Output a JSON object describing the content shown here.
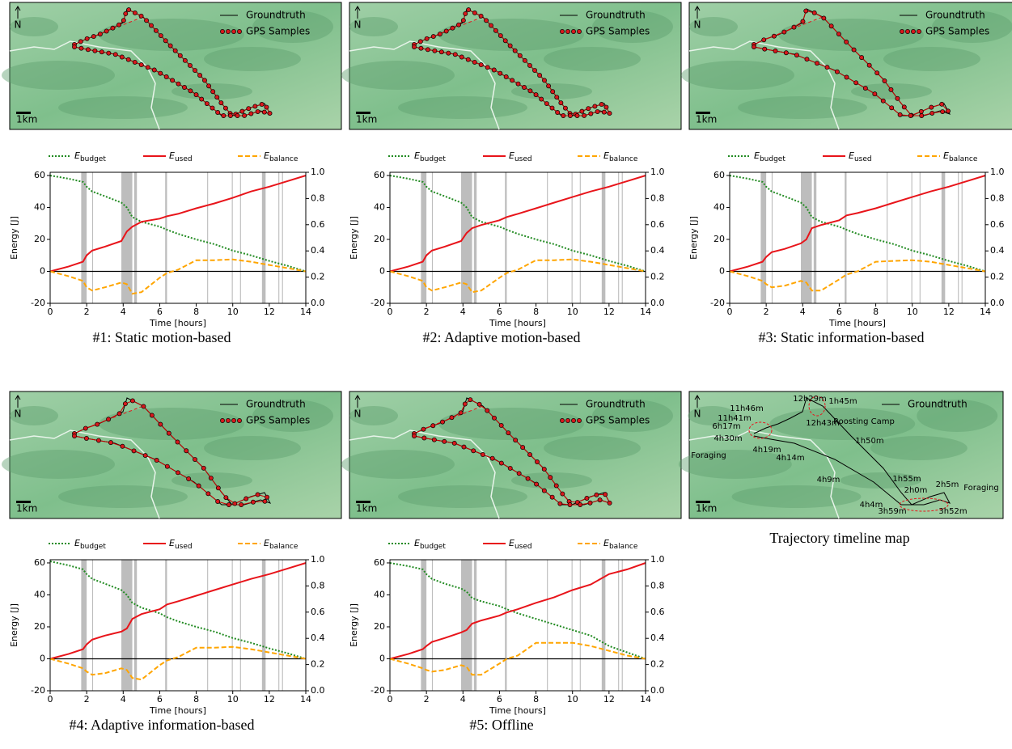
{
  "chart_data": [
    {
      "type": "line",
      "caption": "#1: Static motion-based",
      "xlabel": "Time [hours]",
      "ylabel": "Energy [J]",
      "xlim": [
        0,
        14
      ],
      "ylim": [
        -20,
        62
      ],
      "y2lim": [
        0,
        1
      ],
      "xticks": [
        0,
        2,
        4,
        6,
        8,
        10,
        12,
        14
      ],
      "yticks": [
        -20,
        0,
        20,
        40,
        60
      ],
      "y2ticks": [
        0.0,
        0.2,
        0.4,
        0.6,
        0.8,
        1.0
      ],
      "x": [
        0,
        1,
        1.8,
        2,
        2.3,
        3,
        3.9,
        4.2,
        4.5,
        5,
        6,
        6.4,
        7,
        8,
        9,
        10,
        11,
        12,
        13,
        14
      ],
      "spans": [
        [
          1.7,
          2.0
        ],
        [
          2.3,
          2.35
        ],
        [
          3.9,
          4.5
        ],
        [
          4.6,
          4.75
        ],
        [
          6.3,
          6.4
        ],
        [
          8.6,
          8.65
        ],
        [
          9.95,
          10.0
        ],
        [
          10.4,
          10.45
        ],
        [
          11.6,
          11.8
        ],
        [
          12.5,
          12.55
        ],
        [
          12.7,
          12.75
        ]
      ],
      "series": [
        {
          "name": "E_budget",
          "color": "#228b22",
          "values": [
            60,
            58,
            56,
            53,
            50,
            47,
            43,
            40,
            34,
            31,
            28,
            26,
            23.5,
            20,
            17,
            13,
            10,
            6.5,
            3.5,
            0
          ]
        },
        {
          "name": "E_used",
          "color": "#e8141a",
          "values": [
            0,
            3,
            6,
            10,
            13,
            15.5,
            19,
            25,
            28,
            31,
            33,
            34.5,
            36,
            39.5,
            42.5,
            46,
            50,
            53,
            56.5,
            60
          ]
        },
        {
          "name": "E_balance",
          "color": "#ffa500",
          "values": [
            0,
            -3,
            -6,
            -10,
            -12,
            -10,
            -7,
            -8,
            -14,
            -13,
            -4,
            -1,
            1,
            7,
            7,
            7.5,
            6,
            4,
            2,
            0
          ]
        }
      ]
    },
    {
      "type": "line",
      "caption": "#2: Adaptive motion-based",
      "xlabel": "Time [hours]",
      "ylabel": "Energy [J]",
      "xlim": [
        0,
        14
      ],
      "ylim": [
        -20,
        62
      ],
      "y2lim": [
        0,
        1
      ],
      "xticks": [
        0,
        2,
        4,
        6,
        8,
        10,
        12,
        14
      ],
      "yticks": [
        -20,
        0,
        20,
        40,
        60
      ],
      "y2ticks": [
        0.0,
        0.2,
        0.4,
        0.6,
        0.8,
        1.0
      ],
      "x": [
        0,
        1,
        1.8,
        2,
        2.3,
        3,
        3.9,
        4.2,
        4.5,
        5,
        6,
        6.4,
        7,
        8,
        9,
        10,
        11,
        12,
        13,
        14
      ],
      "spans": [
        [
          1.7,
          2.0
        ],
        [
          2.3,
          2.35
        ],
        [
          3.9,
          4.5
        ],
        [
          4.6,
          4.75
        ],
        [
          6.3,
          6.4
        ],
        [
          8.6,
          8.65
        ],
        [
          9.95,
          10.0
        ],
        [
          10.4,
          10.45
        ],
        [
          11.6,
          11.8
        ],
        [
          12.5,
          12.55
        ],
        [
          12.7,
          12.75
        ]
      ],
      "series": [
        {
          "name": "E_budget",
          "color": "#228b22",
          "values": [
            60,
            58,
            56,
            53,
            50,
            47,
            43,
            40,
            34,
            31,
            28,
            26,
            23.5,
            20,
            17,
            13,
            10,
            6.5,
            3.5,
            0
          ]
        },
        {
          "name": "E_used",
          "color": "#e8141a",
          "values": [
            0,
            3,
            6,
            10,
            13,
            15.5,
            19,
            24,
            27,
            29,
            32,
            34,
            36,
            39.5,
            43,
            46.5,
            50,
            53,
            56.5,
            60
          ]
        },
        {
          "name": "E_balance",
          "color": "#ffa500",
          "values": [
            0,
            -3,
            -6,
            -10,
            -12,
            -10,
            -7,
            -8,
            -13,
            -12,
            -4,
            -1,
            1,
            7,
            7,
            7.5,
            6,
            4,
            2,
            0
          ]
        }
      ]
    },
    {
      "type": "line",
      "caption": "#3: Static information-based",
      "xlabel": "Time [hours]",
      "ylabel": "Energy [J]",
      "xlim": [
        0,
        14
      ],
      "ylim": [
        -20,
        62
      ],
      "y2lim": [
        0,
        1
      ],
      "xticks": [
        0,
        2,
        4,
        6,
        8,
        10,
        12,
        14
      ],
      "yticks": [
        -20,
        0,
        20,
        40,
        60
      ],
      "y2ticks": [
        0.0,
        0.2,
        0.4,
        0.6,
        0.8,
        1.0
      ],
      "x": [
        0,
        1,
        1.8,
        2,
        2.3,
        3,
        3.9,
        4.2,
        4.5,
        5,
        6,
        6.4,
        7,
        8,
        9,
        10,
        11,
        12,
        13,
        14
      ],
      "spans": [
        [
          1.7,
          2.0
        ],
        [
          2.3,
          2.35
        ],
        [
          3.9,
          4.5
        ],
        [
          4.6,
          4.75
        ],
        [
          6.3,
          6.4
        ],
        [
          8.6,
          8.65
        ],
        [
          9.95,
          10.0
        ],
        [
          10.4,
          10.45
        ],
        [
          11.6,
          11.8
        ],
        [
          12.5,
          12.55
        ],
        [
          12.7,
          12.75
        ]
      ],
      "series": [
        {
          "name": "E_budget",
          "color": "#228b22",
          "values": [
            60,
            58,
            56,
            53,
            50,
            47,
            43,
            40,
            34,
            31,
            28,
            26,
            23.5,
            20,
            17,
            13,
            10,
            6.5,
            3.5,
            0
          ]
        },
        {
          "name": "E_used",
          "color": "#e8141a",
          "values": [
            0,
            3,
            6,
            9,
            12,
            14,
            17.5,
            20,
            27,
            29,
            32,
            35,
            36.5,
            39.5,
            43,
            46.5,
            50,
            53,
            56.5,
            60
          ]
        },
        {
          "name": "E_balance",
          "color": "#ffa500",
          "values": [
            0,
            -3,
            -6,
            -8,
            -10,
            -9,
            -6,
            -7,
            -12,
            -12,
            -5,
            -2,
            0,
            6,
            6.5,
            7,
            6,
            4,
            2,
            0
          ]
        }
      ]
    },
    {
      "type": "line",
      "caption": "#4: Adaptive information-based",
      "xlabel": "Time [hours]",
      "ylabel": "Energy [J]",
      "xlim": [
        0,
        14
      ],
      "ylim": [
        -20,
        62
      ],
      "y2lim": [
        0,
        1
      ],
      "xticks": [
        0,
        2,
        4,
        6,
        8,
        10,
        12,
        14
      ],
      "yticks": [
        -20,
        0,
        20,
        40,
        60
      ],
      "y2ticks": [
        0.0,
        0.2,
        0.4,
        0.6,
        0.8,
        1.0
      ],
      "x": [
        0,
        1,
        1.8,
        2,
        2.3,
        3,
        3.9,
        4.2,
        4.5,
        5,
        6,
        6.4,
        7,
        8,
        9,
        10,
        11,
        12,
        13,
        14
      ],
      "spans": [
        [
          1.7,
          2.0
        ],
        [
          2.3,
          2.35
        ],
        [
          3.9,
          4.5
        ],
        [
          4.6,
          4.75
        ],
        [
          6.3,
          6.4
        ],
        [
          8.6,
          8.65
        ],
        [
          9.95,
          10.0
        ],
        [
          10.4,
          10.45
        ],
        [
          11.6,
          11.8
        ],
        [
          12.5,
          12.55
        ],
        [
          12.7,
          12.75
        ]
      ],
      "series": [
        {
          "name": "E_budget",
          "color": "#228b22",
          "values": [
            61,
            58.5,
            56,
            53,
            50,
            47,
            43,
            40,
            35,
            32,
            28.5,
            26,
            23.5,
            20,
            17,
            13,
            10,
            6.5,
            3.5,
            0
          ]
        },
        {
          "name": "E_used",
          "color": "#e8141a",
          "values": [
            0,
            3,
            6,
            9,
            12,
            14.5,
            17,
            19,
            25,
            28,
            31,
            34,
            36,
            39.5,
            43,
            46.5,
            50,
            53,
            56.5,
            60
          ]
        },
        {
          "name": "E_balance",
          "color": "#ffa500",
          "values": [
            0,
            -3,
            -6,
            -8,
            -10,
            -9,
            -6,
            -7,
            -12,
            -13,
            -4,
            -1,
            1,
            7,
            7,
            7.5,
            6,
            4,
            2,
            0
          ]
        }
      ]
    },
    {
      "type": "line",
      "caption": "#5: Offline",
      "xlabel": "Time [hours]",
      "ylabel": "Energy [J]",
      "xlim": [
        0,
        14
      ],
      "ylim": [
        -20,
        62
      ],
      "y2lim": [
        0,
        1
      ],
      "xticks": [
        0,
        2,
        4,
        6,
        8,
        10,
        12,
        14
      ],
      "yticks": [
        -20,
        0,
        20,
        40,
        60
      ],
      "y2ticks": [
        0.0,
        0.2,
        0.4,
        0.6,
        0.8,
        1.0
      ],
      "x": [
        0,
        1,
        1.8,
        2,
        2.3,
        3,
        3.9,
        4.2,
        4.5,
        5,
        6,
        6.4,
        7,
        8,
        9,
        10,
        11,
        12,
        13,
        14
      ],
      "spans": [
        [
          1.7,
          2.0
        ],
        [
          2.3,
          2.35
        ],
        [
          3.9,
          4.5
        ],
        [
          4.6,
          4.75
        ],
        [
          6.3,
          6.4
        ],
        [
          8.6,
          8.65
        ],
        [
          9.95,
          10.0
        ],
        [
          10.4,
          10.45
        ],
        [
          11.6,
          11.8
        ],
        [
          12.5,
          12.55
        ],
        [
          12.7,
          12.75
        ]
      ],
      "series": [
        {
          "name": "E_budget",
          "color": "#228b22",
          "values": [
            60,
            58,
            56,
            53,
            50,
            47,
            44,
            42,
            38,
            36,
            33,
            31,
            28.5,
            25,
            21.5,
            18,
            14.5,
            8,
            4,
            0
          ]
        },
        {
          "name": "E_used",
          "color": "#e8141a",
          "values": [
            0,
            3,
            6,
            8,
            10.5,
            13,
            16.5,
            18,
            22,
            24,
            27,
            29,
            31,
            35,
            38.5,
            43,
            46.5,
            53,
            56,
            60
          ]
        },
        {
          "name": "E_balance",
          "color": "#ffa500",
          "values": [
            0,
            -3,
            -6,
            -7,
            -8,
            -7,
            -4,
            -5,
            -10,
            -10,
            -3,
            0,
            2,
            10,
            10,
            10,
            8,
            5,
            2,
            0
          ]
        }
      ]
    }
  ],
  "maps": [
    {
      "north": "N",
      "scale": "1km",
      "legend": [
        "Groundtruth",
        "GPS Samples"
      ]
    },
    {
      "north": "N",
      "scale": "1km",
      "legend": [
        "Groundtruth",
        "GPS Samples"
      ]
    },
    {
      "north": "N",
      "scale": "1km",
      "legend": [
        "Groundtruth",
        "GPS Samples"
      ]
    },
    {
      "north": "N",
      "scale": "1km",
      "legend": [
        "Groundtruth",
        "GPS Samples"
      ]
    },
    {
      "north": "N",
      "scale": "1km",
      "legend": [
        "Groundtruth",
        "GPS Samples"
      ]
    }
  ],
  "timeline_map": {
    "north": "N",
    "scale": "1km",
    "legend": [
      "Groundtruth"
    ],
    "caption": "Trajectory timeline map",
    "labels": [
      "12h29m",
      "1h45m",
      "11h46m",
      "11h41m",
      "6h17m",
      "4h30m",
      "Foraging",
      "4h19m",
      "4h14m",
      "Roosting Camp",
      "1h50m",
      "12h43m",
      "4h9m",
      "1h55m",
      "2h0m",
      "2h5m",
      "Foraging",
      "4h4m",
      "3h59m",
      "3h52m"
    ]
  }
}
